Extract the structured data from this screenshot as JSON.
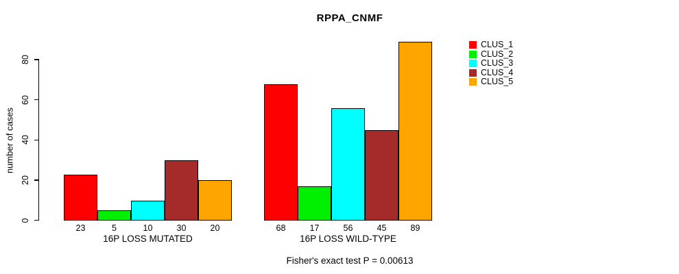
{
  "chart_data": {
    "type": "bar",
    "title": "RPPA_CNMF",
    "ylabel": "number of cases",
    "footnote": "Fisher's exact test P = 0.00613",
    "yticks": [
      0,
      20,
      40,
      60,
      80
    ],
    "ylim": [
      0,
      89
    ],
    "grid": false,
    "legend_position": "right",
    "bar_value_labels": true,
    "categories": [
      "16P LOSS MUTATED",
      "16P LOSS WILD-TYPE"
    ],
    "series": [
      {
        "name": "CLUS_1",
        "color": "#FF0000",
        "values": [
          23,
          68
        ]
      },
      {
        "name": "CLUS_2",
        "color": "#00EE00",
        "values": [
          5,
          17
        ]
      },
      {
        "name": "CLUS_3",
        "color": "#00FFFF",
        "values": [
          10,
          56
        ]
      },
      {
        "name": "CLUS_4",
        "color": "#A52A2A",
        "values": [
          30,
          45
        ]
      },
      {
        "name": "CLUS_5",
        "color": "#FFA500",
        "values": [
          20,
          89
        ]
      }
    ]
  }
}
